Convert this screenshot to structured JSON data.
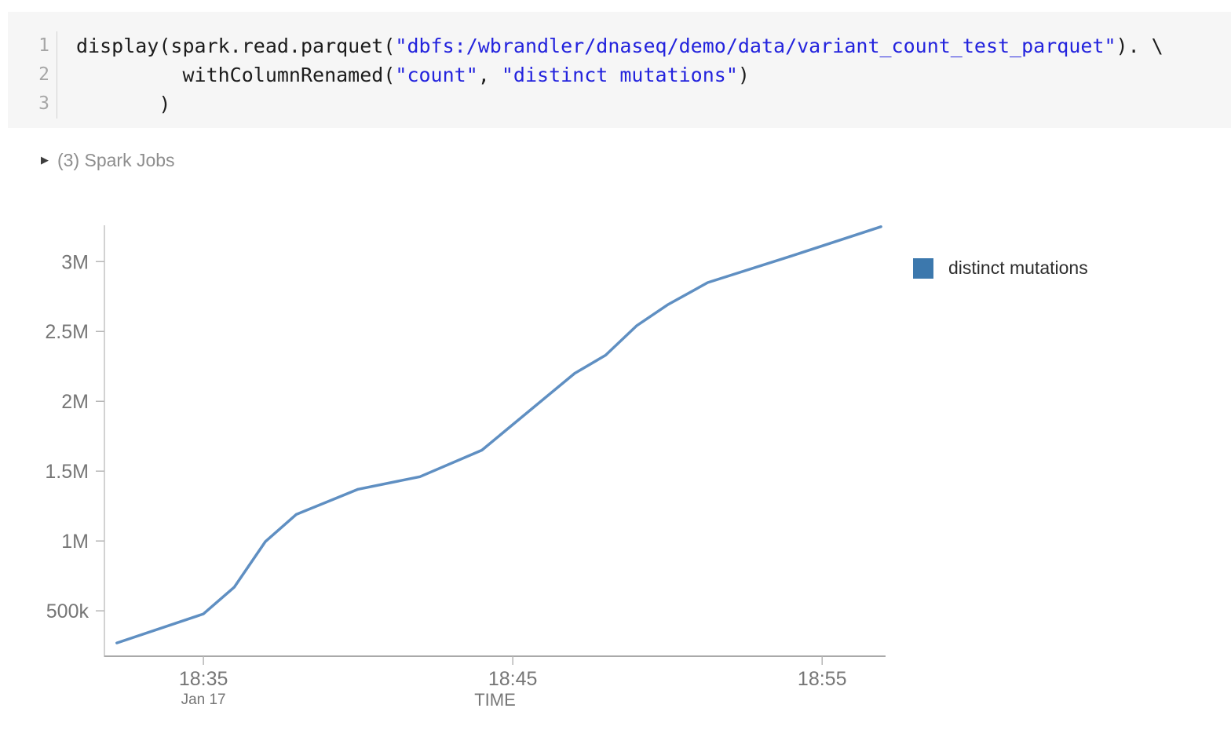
{
  "code_cell": {
    "language": "python",
    "line_numbers": [
      "1",
      "2",
      "3"
    ],
    "lines": [
      [
        {
          "t": "display(spark.read.parquet(",
          "c": "plain"
        },
        {
          "t": "\"dbfs:/wbrandler/dnaseq/demo/data/variant_count_test_parquet\"",
          "c": "string"
        },
        {
          "t": "). \\",
          "c": "plain"
        }
      ],
      [
        {
          "t": "         withColumnRenamed(",
          "c": "plain"
        },
        {
          "t": "\"count\"",
          "c": "string"
        },
        {
          "t": ", ",
          "c": "plain"
        },
        {
          "t": "\"distinct mutations\"",
          "c": "string"
        },
        {
          "t": ")",
          "c": "plain"
        }
      ],
      [
        {
          "t": "       )",
          "c": "plain"
        }
      ]
    ],
    "colors": {
      "background": "#f6f6f6",
      "plain": "#1c1c1c",
      "string": "#2323dd",
      "line_number": "#a6a6a6"
    }
  },
  "spark_jobs": {
    "label": "(3) Spark Jobs",
    "count": "3",
    "collapsed": true
  },
  "chart_data": {
    "type": "line",
    "title": "",
    "xlabel": "TIME",
    "ylabel": "",
    "grid": false,
    "legend_position": "right",
    "legend": {
      "label": "distinct mutations",
      "swatch_color": "#3c78ad"
    },
    "x_axis": {
      "date_sublabel": "Jan 17",
      "xlim_minutes_after_1830": [
        1.8,
        27.05
      ],
      "ticks": [
        {
          "label": "18:35",
          "minutes_after_1830": 5,
          "sublabel": "Jan 17"
        },
        {
          "label": "18:45",
          "minutes_after_1830": 15,
          "sublabel": ""
        },
        {
          "label": "18:55",
          "minutes_after_1830": 25,
          "sublabel": ""
        }
      ]
    },
    "y_axis": {
      "ylim": [
        175000,
        3260000
      ],
      "ticks": [
        {
          "label": "500k",
          "value": 500000
        },
        {
          "label": "1M",
          "value": 1000000
        },
        {
          "label": "1.5M",
          "value": 1500000
        },
        {
          "label": "2M",
          "value": 2000000
        },
        {
          "label": "2.5M",
          "value": 2500000
        },
        {
          "label": "3M",
          "value": 3000000
        }
      ]
    },
    "series": [
      {
        "name": "distinct mutations",
        "color": "#3c78ad",
        "line_color": "#5f8fc2",
        "points": [
          {
            "time": "18:32",
            "minutes_after_1830": 2.2,
            "value": 270000
          },
          {
            "time": "18:35",
            "minutes_after_1830": 5.0,
            "value": 478000
          },
          {
            "time": "18:36",
            "minutes_after_1830": 6.0,
            "value": 670000
          },
          {
            "time": "18:37",
            "minutes_after_1830": 7.0,
            "value": 995000
          },
          {
            "time": "18:38",
            "minutes_after_1830": 8.0,
            "value": 1190000
          },
          {
            "time": "18:40",
            "minutes_after_1830": 10.0,
            "value": 1370000
          },
          {
            "time": "18:42",
            "minutes_after_1830": 12.0,
            "value": 1460000
          },
          {
            "time": "18:44",
            "minutes_after_1830": 14.0,
            "value": 1650000
          },
          {
            "time": "18:47",
            "minutes_after_1830": 17.0,
            "value": 2200000
          },
          {
            "time": "18:48",
            "minutes_after_1830": 18.0,
            "value": 2330000
          },
          {
            "time": "18:49",
            "minutes_after_1830": 19.0,
            "value": 2540000
          },
          {
            "time": "18:50",
            "minutes_after_1830": 20.0,
            "value": 2690000
          },
          {
            "time": "18:51",
            "minutes_after_1830": 21.3,
            "value": 2850000
          },
          {
            "time": "18:54",
            "minutes_after_1830": 24.0,
            "value": 3040000
          },
          {
            "time": "18:57",
            "minutes_after_1830": 26.9,
            "value": 3250000
          }
        ]
      }
    ],
    "axis_colors": {
      "axis_line": "#b6b6b6",
      "tick_text": "#767676"
    }
  }
}
